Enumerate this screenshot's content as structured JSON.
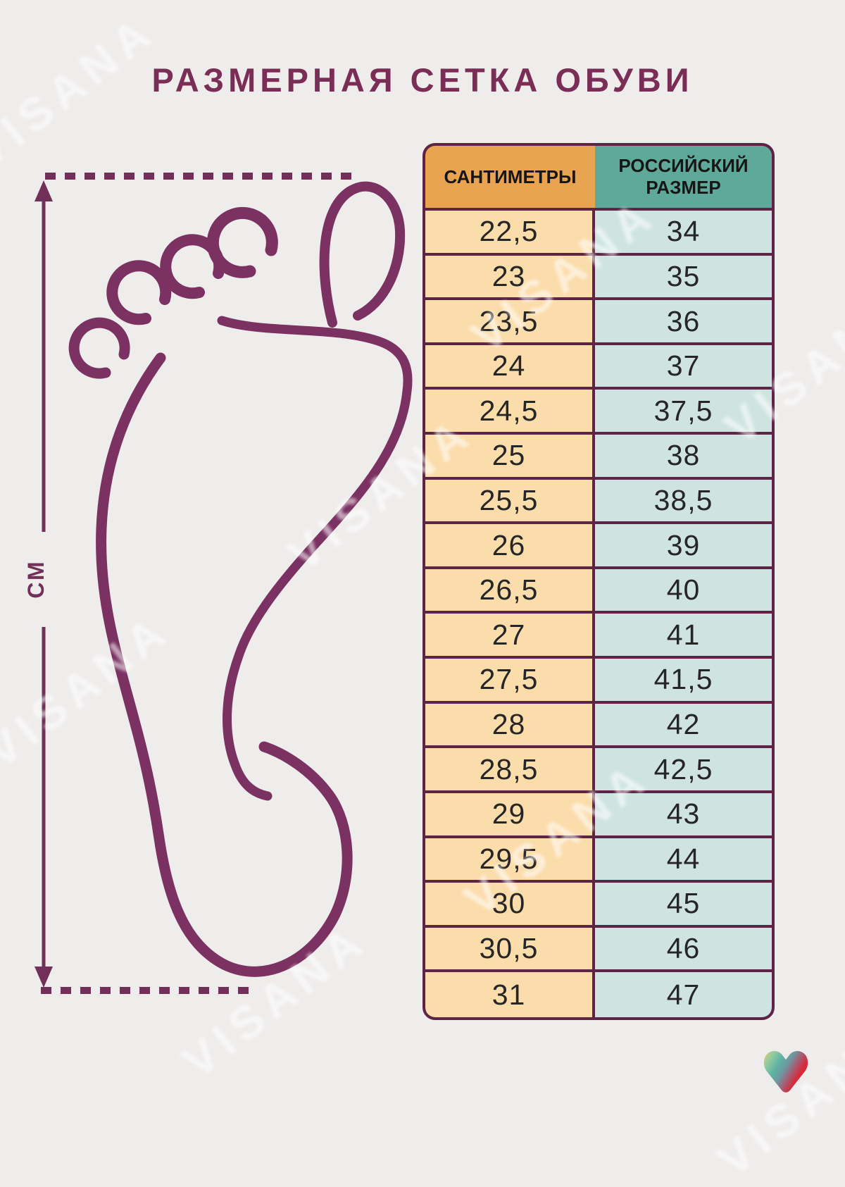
{
  "title": "РАЗМЕРНАЯ СЕТКА ОБУВИ",
  "measure": {
    "unit_label": "СМ"
  },
  "table": {
    "headers": {
      "cm": "САНТИМЕТРЫ",
      "ru": "РОССИЙСКИЙ РАЗМЕР"
    },
    "rows": [
      {
        "cm": "22,5",
        "ru": "34"
      },
      {
        "cm": "23",
        "ru": "35"
      },
      {
        "cm": "23,5",
        "ru": "36"
      },
      {
        "cm": "24",
        "ru": "37"
      },
      {
        "cm": "24,5",
        "ru": "37,5"
      },
      {
        "cm": "25",
        "ru": "38"
      },
      {
        "cm": "25,5",
        "ru": "38,5"
      },
      {
        "cm": "26",
        "ru": "39"
      },
      {
        "cm": "26,5",
        "ru": "40"
      },
      {
        "cm": "27",
        "ru": "41"
      },
      {
        "cm": "27,5",
        "ru": "41,5"
      },
      {
        "cm": "28",
        "ru": "42"
      },
      {
        "cm": "28,5",
        "ru": "42,5"
      },
      {
        "cm": "29",
        "ru": "43"
      },
      {
        "cm": "29,5",
        "ru": "44"
      },
      {
        "cm": "30",
        "ru": "45"
      },
      {
        "cm": "30,5",
        "ru": "46"
      },
      {
        "cm": "31",
        "ru": "47"
      }
    ]
  },
  "watermark": {
    "text": "VISANA"
  },
  "colors": {
    "background": "#EFEDEC",
    "title": "#7B2E55",
    "foot_stroke": "#7B3161",
    "measure_line": "#713058",
    "table_border": "#5E2445",
    "header_orange": "#E9A452",
    "header_teal": "#5FA99B",
    "cell_orange": "#FBDCAB",
    "cell_teal": "#CFE4E0",
    "logo_gradient": [
      "#EFC663",
      "#93CC9E",
      "#5FB3A4",
      "#A55E74",
      "#E81A2C"
    ]
  }
}
